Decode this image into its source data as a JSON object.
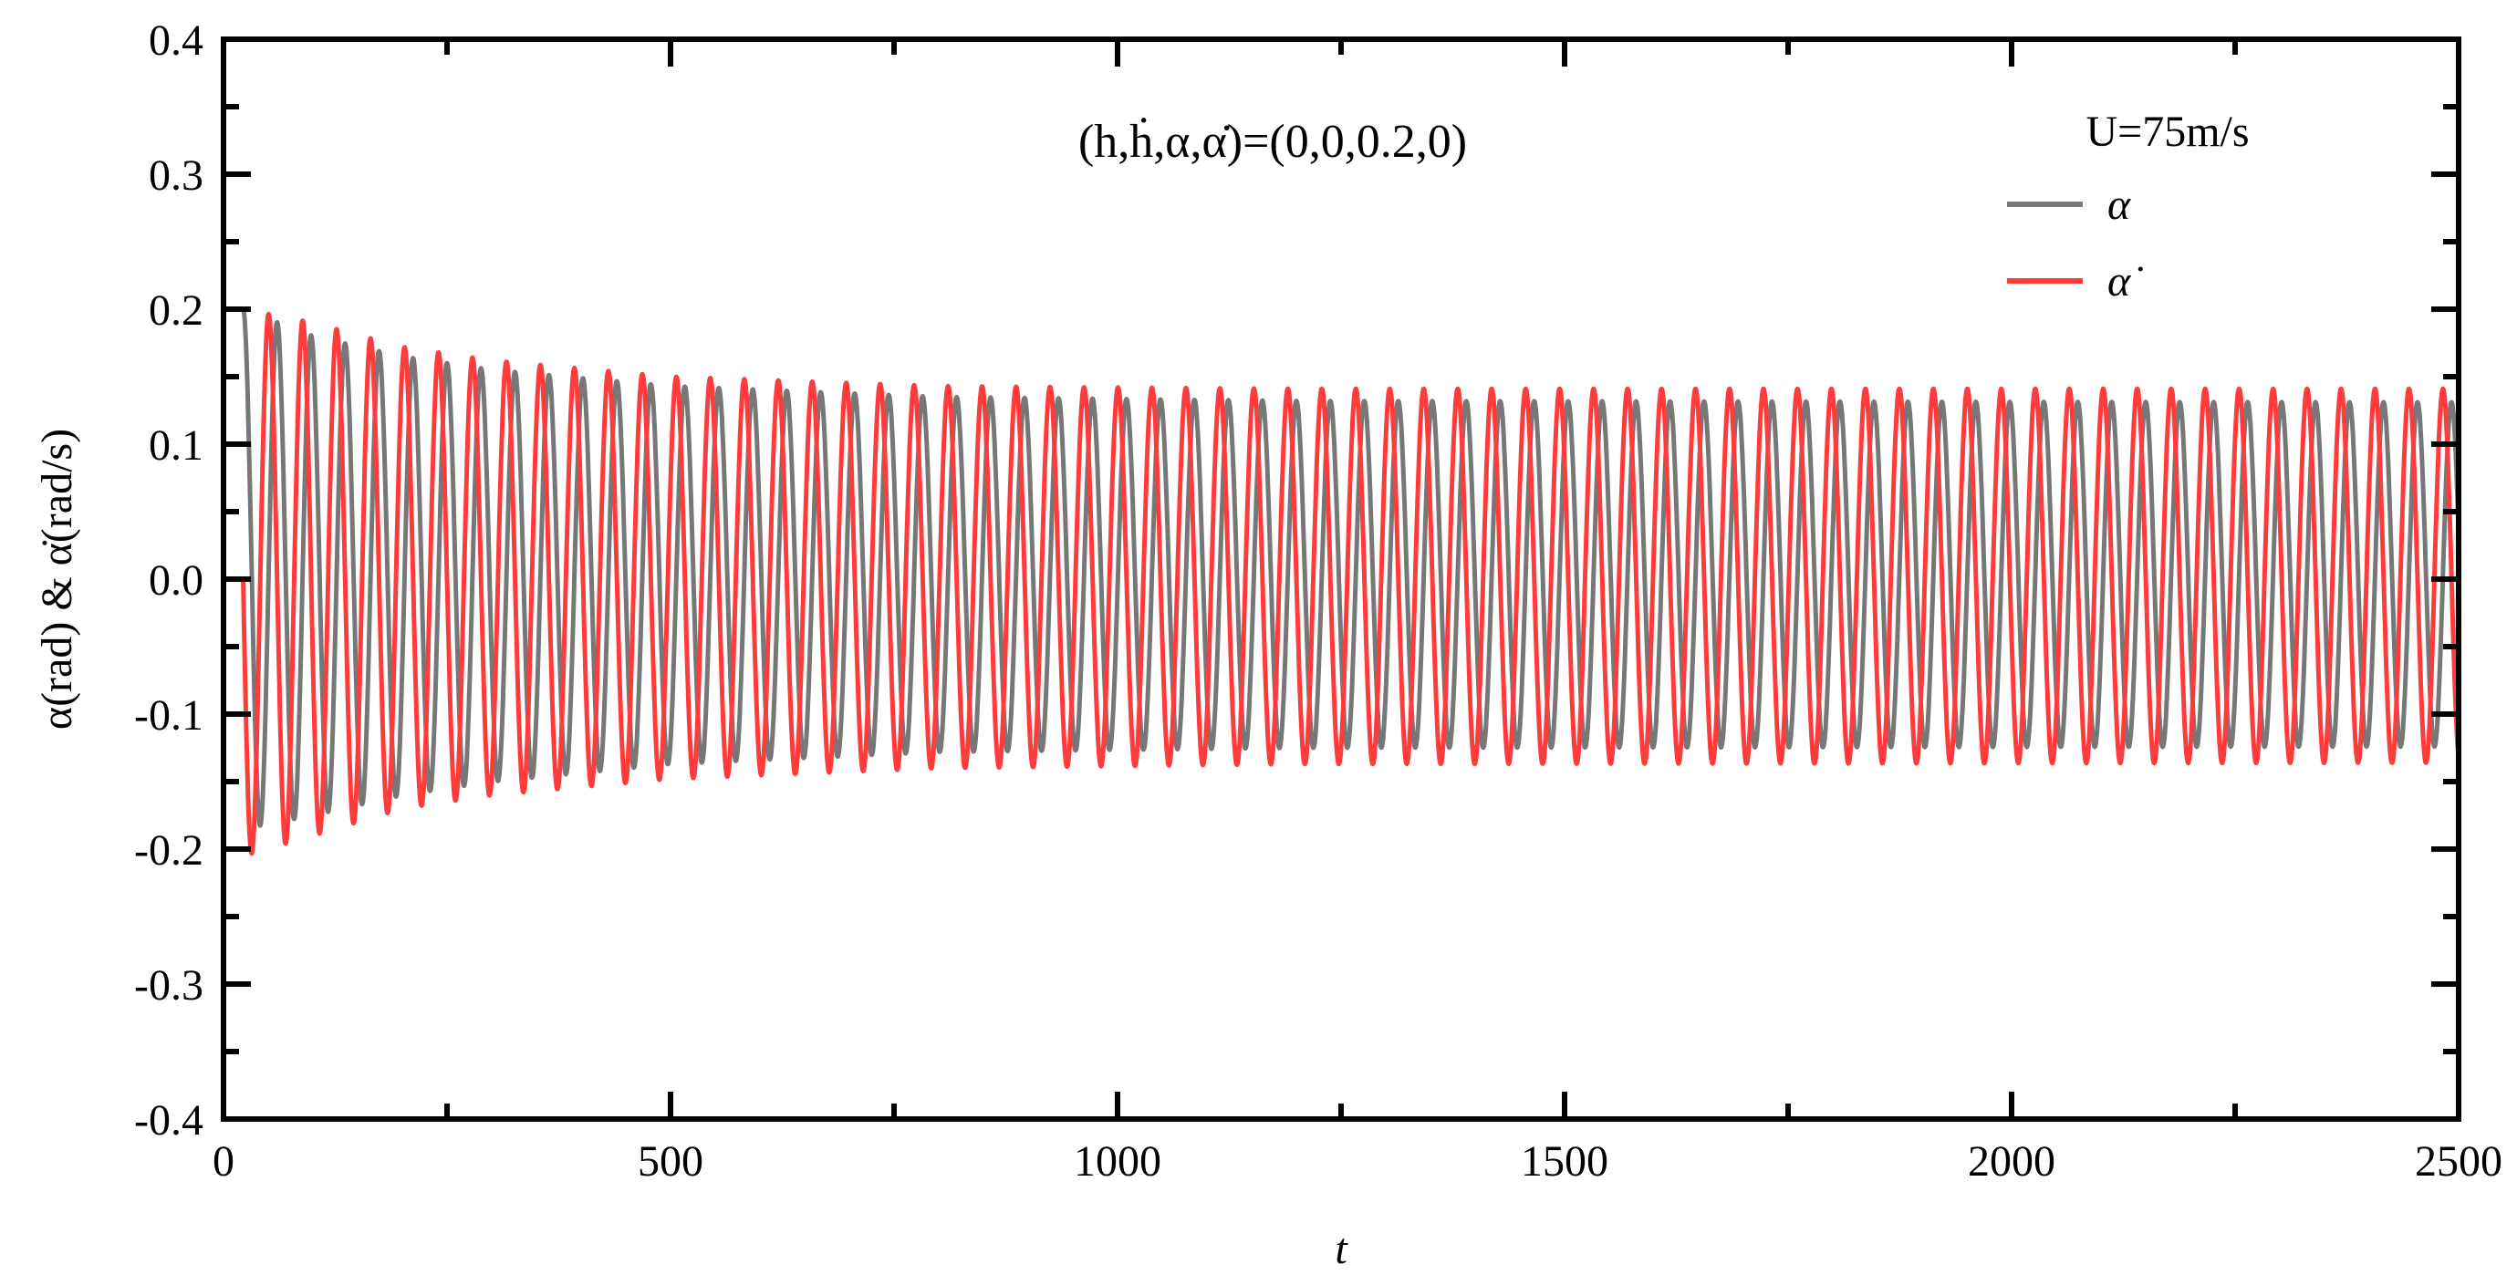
{
  "chart_data": {
    "type": "line",
    "title": "(h,ḣ,α,α̇)=(0,0,0.2,0)",
    "annotation": "U=75m/s",
    "xlabel": "t",
    "ylabel": "α(rad) & α̇(rad/s)",
    "xlim": [
      0,
      2500
    ],
    "ylim": [
      -0.4,
      0.4
    ],
    "xticks": [
      "0",
      "500",
      "1000",
      "1500",
      "2000",
      "2500"
    ],
    "yticks": [
      "-0.4",
      "-0.3",
      "-0.2",
      "-0.1",
      "0.0",
      "0.1",
      "0.2",
      "0.3",
      "0.4"
    ],
    "grid": false,
    "legend_position": "top-right",
    "oscillation_period": 38,
    "oscillation_start_t": 22,
    "series": [
      {
        "name": "α",
        "color": "#777777",
        "initial_value": 0.2,
        "envelope_t": [
          22,
          100,
          200,
          300,
          500,
          800,
          1200,
          2500
        ],
        "upper": [
          0.2,
          0.18,
          0.165,
          0.155,
          0.143,
          0.135,
          0.132,
          0.131
        ],
        "lower": [
          -0.185,
          -0.175,
          -0.16,
          -0.15,
          -0.137,
          -0.128,
          -0.125,
          -0.124
        ]
      },
      {
        "name": "α̇",
        "color": "#FF3B3B",
        "initial_value": 0.0,
        "envelope_t": [
          22,
          100,
          200,
          300,
          500,
          800,
          1200,
          2500
        ],
        "upper": [
          0.2,
          0.19,
          0.172,
          0.162,
          0.15,
          0.143,
          0.141,
          0.141
        ],
        "lower": [
          -0.205,
          -0.19,
          -0.17,
          -0.16,
          -0.148,
          -0.14,
          -0.137,
          -0.136
        ]
      }
    ]
  }
}
